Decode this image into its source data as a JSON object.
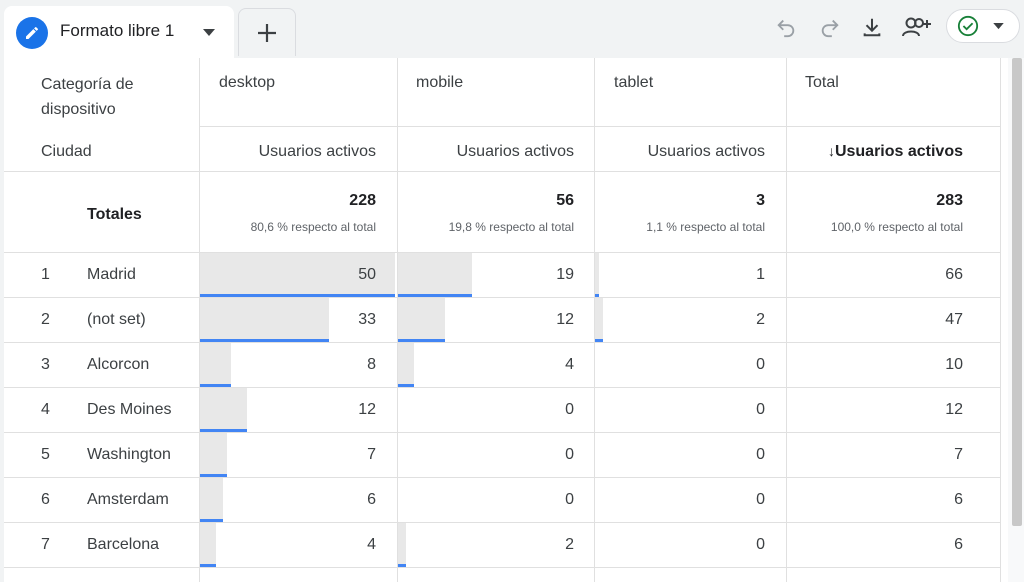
{
  "tab": {
    "title": "Formato libre 1"
  },
  "columns": {
    "dimension_header": "Categoría de dispositivo",
    "row_dimension": "Ciudad",
    "device_names": [
      "desktop",
      "mobile",
      "tablet",
      "Total"
    ],
    "metric_label": "Usuarios activos",
    "sorted_metric_label": "Usuarios activos",
    "sort_arrow": "↓"
  },
  "totals": {
    "label": "Totales",
    "values": [
      "228",
      "56",
      "3",
      "283"
    ],
    "percents": [
      "80,6 % respecto al total",
      "19,8 % respecto al total",
      "1,1 % respecto al total",
      "100,0 % respecto al total"
    ]
  },
  "rows": [
    {
      "rank": "1",
      "city": "Madrid",
      "desktop": "50",
      "mobile": "19",
      "tablet": "1",
      "total": "66"
    },
    {
      "rank": "2",
      "city": "(not set)",
      "desktop": "33",
      "mobile": "12",
      "tablet": "2",
      "total": "47"
    },
    {
      "rank": "3",
      "city": "Alcorcon",
      "desktop": "8",
      "mobile": "4",
      "tablet": "0",
      "total": "10"
    },
    {
      "rank": "4",
      "city": "Des Moines",
      "desktop": "12",
      "mobile": "0",
      "tablet": "0",
      "total": "12"
    },
    {
      "rank": "5",
      "city": "Washington",
      "desktop": "7",
      "mobile": "0",
      "tablet": "0",
      "total": "7"
    },
    {
      "rank": "6",
      "city": "Amsterdam",
      "desktop": "6",
      "mobile": "0",
      "tablet": "0",
      "total": "6"
    },
    {
      "rank": "7",
      "city": "Barcelona",
      "desktop": "4",
      "mobile": "2",
      "tablet": "0",
      "total": "6"
    }
  ],
  "bar_scale_max": 50,
  "colors": {
    "accent": "#1a73e8",
    "bar_line": "#4285f4",
    "bar_fill": "#e8e8e8",
    "check": "#188038"
  },
  "icons": [
    "pencil-icon",
    "chevron-down-icon",
    "plus-icon",
    "undo-icon",
    "redo-icon",
    "download-icon",
    "share-user-icon",
    "check-circle-icon"
  ]
}
